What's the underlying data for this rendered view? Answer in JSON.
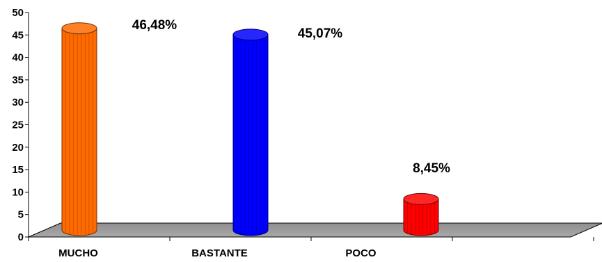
{
  "chart_data": {
    "type": "bar",
    "categories": [
      "MUCHO",
      "BASTANTE",
      "POCO"
    ],
    "values": [
      46.48,
      45.07,
      8.45
    ],
    "data_labels": [
      "46,48%",
      "45,07%",
      "8,45%"
    ],
    "colors": [
      "#ff6a00",
      "#0000ff",
      "#ff0000"
    ],
    "ylim": [
      0,
      50
    ],
    "yticks": [
      "0",
      "5",
      "10",
      "15",
      "20",
      "25",
      "30",
      "35",
      "40",
      "45",
      "50"
    ],
    "grid": false,
    "legend": "none",
    "title": "",
    "xlabel": "",
    "ylabel": ""
  }
}
